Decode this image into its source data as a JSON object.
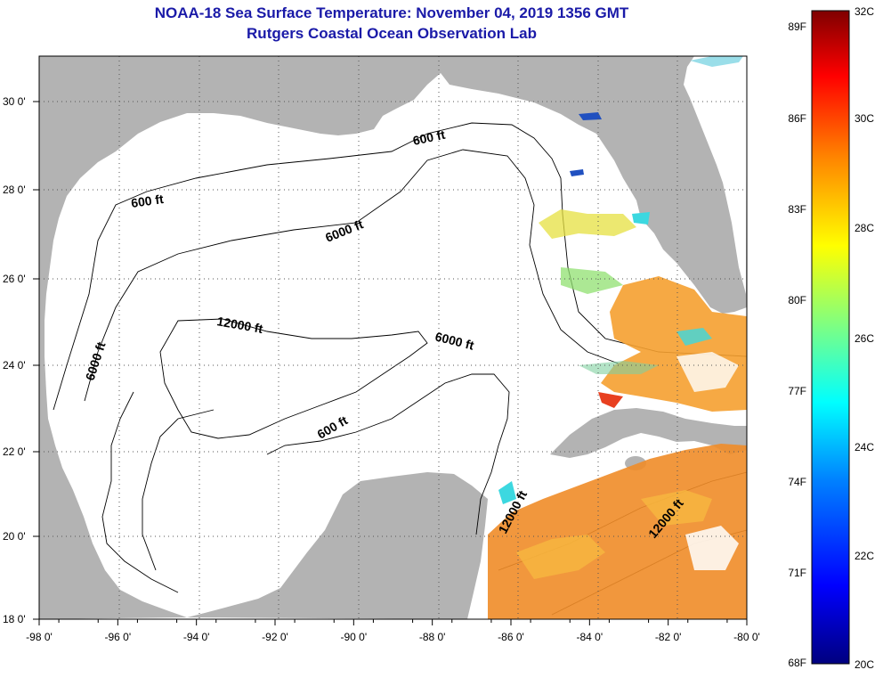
{
  "title": "NOAA-18 Sea Surface Temperature:  November 04, 2019 1356 GMT",
  "subtitle": "Rutgers Coastal Ocean Observation Lab",
  "lon_ticks": [
    "-98 0'",
    "-96 0'",
    "-94 0'",
    "-92 0'",
    "-90 0'",
    "-88 0'",
    "-86 0'",
    "-84 0'",
    "-82 0'",
    "-80 0'"
  ],
  "lat_ticks": [
    "30 0'",
    "28 0'",
    "26 0'",
    "24 0'",
    "22 0'",
    "20 0'",
    "18 0'"
  ],
  "contour_labels": {
    "c600_north": "600 ft",
    "c600_west": "600 ft",
    "c600_south": "600 ft",
    "c6000_north": "6000 ft",
    "c6000_west": "6000 ft",
    "c6000_east": "6000 ft",
    "c12000_center": "12000 ft",
    "c12000_yucatan": "12000 ft",
    "c12000_caribbean": "12000 ft"
  },
  "colorbar": {
    "fahrenheit": [
      "89F",
      "86F",
      "83F",
      "80F",
      "77F",
      "74F",
      "71F",
      "68F"
    ],
    "celsius": [
      "32C",
      "30C",
      "28C",
      "26C",
      "24C",
      "22C",
      "20C"
    ]
  },
  "colors": {
    "land": "#b3b3b3",
    "water": "#ffffff",
    "title": "#1a1aa8",
    "warm_sst": "#f08c28",
    "gradient": [
      "#00007f",
      "#0000ff",
      "#0080ff",
      "#00ffff",
      "#80ff80",
      "#ffff00",
      "#ff8000",
      "#ff0000",
      "#7f0000"
    ]
  }
}
